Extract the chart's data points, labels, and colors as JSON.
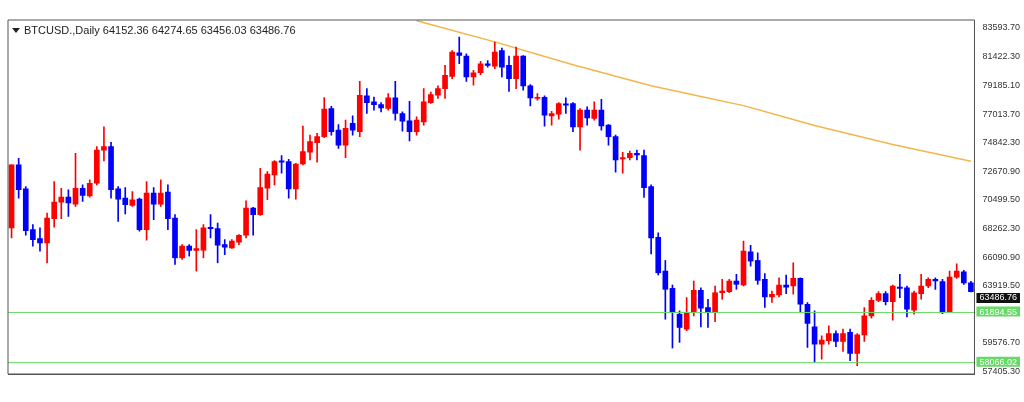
{
  "chart_data": {
    "type": "candlestick",
    "title": "BTCUSD.,Daily 64152.36 64274.65 63456.03 63486.76",
    "categories": [
      null,
      null,
      null,
      null,
      null,
      null,
      null,
      null,
      null,
      null,
      null,
      null,
      null,
      null,
      null,
      null,
      null,
      null,
      null,
      null,
      null,
      null,
      null,
      null,
      null,
      null,
      null,
      null,
      null,
      null,
      null,
      null,
      null,
      null,
      null,
      null,
      null,
      null,
      null,
      null,
      null,
      null,
      null,
      null,
      null,
      null,
      null,
      null,
      null,
      null,
      null,
      null,
      null,
      null,
      null,
      null,
      null,
      null,
      null,
      null,
      null,
      null,
      null,
      null,
      null,
      null,
      null,
      null,
      null,
      null,
      null,
      null,
      null,
      null,
      null,
      null,
      null,
      null,
      null,
      null,
      null,
      null,
      null,
      null,
      null,
      null,
      null,
      null,
      null,
      null,
      null,
      null,
      null,
      null,
      null,
      null,
      null,
      null,
      null,
      null,
      null,
      null,
      null,
      null,
      null,
      null,
      null,
      null,
      null,
      null,
      null,
      null,
      null,
      null,
      null,
      null,
      null,
      null,
      null,
      null,
      null,
      null,
      null,
      null,
      null,
      null,
      null,
      null,
      null,
      null,
      null,
      null,
      null,
      null,
      null,
      null
    ],
    "ohlc": [
      [
        68340,
        73150,
        67580,
        73150
      ],
      [
        73150,
        73650,
        70620,
        71250
      ],
      [
        71320,
        71500,
        67780,
        68140
      ],
      [
        68210,
        68590,
        66950,
        67450
      ],
      [
        67530,
        68340,
        66570,
        67200
      ],
      [
        67200,
        69480,
        65680,
        69100
      ],
      [
        69050,
        71880,
        68390,
        70310
      ],
      [
        70310,
        71370,
        69050,
        70690
      ],
      [
        70690,
        71250,
        69220,
        70240
      ],
      [
        70160,
        74030,
        69980,
        71370
      ],
      [
        71370,
        71630,
        70360,
        70820
      ],
      [
        70790,
        72010,
        70690,
        71750
      ],
      [
        71750,
        74540,
        71630,
        74280
      ],
      [
        74280,
        76050,
        73450,
        74540
      ],
      [
        74540,
        74870,
        70620,
        71250
      ],
      [
        71320,
        71500,
        68840,
        70540
      ],
      [
        70620,
        71420,
        69400,
        70110
      ],
      [
        70060,
        71120,
        69980,
        70490
      ],
      [
        70540,
        70620,
        68090,
        68210
      ],
      [
        68210,
        71880,
        67400,
        70990
      ],
      [
        70990,
        71420,
        68970,
        70160
      ],
      [
        70160,
        72010,
        69980,
        70990
      ],
      [
        71070,
        71630,
        68210,
        69050
      ],
      [
        69100,
        69350,
        65560,
        66060
      ],
      [
        66060,
        67070,
        65930,
        66950
      ],
      [
        66950,
        67070,
        66190,
        66620
      ],
      [
        66620,
        68210,
        65050,
        66770
      ],
      [
        66640,
        68590,
        66060,
        68340
      ],
      [
        68390,
        69350,
        67580,
        68290
      ],
      [
        68290,
        68720,
        65680,
        67020
      ],
      [
        67070,
        67450,
        66310,
        66870
      ],
      [
        66820,
        67450,
        66770,
        67330
      ],
      [
        67250,
        67830,
        67070,
        67780
      ],
      [
        67780,
        70410,
        67580,
        69860
      ],
      [
        69860,
        69910,
        67780,
        69350
      ],
      [
        69350,
        72890,
        69300,
        71420
      ],
      [
        71370,
        72640,
        70490,
        72440
      ],
      [
        72390,
        73470,
        71630,
        73400
      ],
      [
        73450,
        73850,
        72510,
        73350
      ],
      [
        73400,
        73580,
        70620,
        71320
      ],
      [
        71320,
        73270,
        70540,
        73220
      ],
      [
        73220,
        76110,
        73150,
        74160
      ],
      [
        74110,
        75420,
        73520,
        74920
      ],
      [
        74840,
        75550,
        73350,
        75300
      ],
      [
        75300,
        78280,
        75220,
        77400
      ],
      [
        77450,
        77620,
        75420,
        75680
      ],
      [
        75800,
        76230,
        74410,
        74660
      ],
      [
        74660,
        76560,
        73700,
        75930
      ],
      [
        76310,
        76890,
        75420,
        75800
      ],
      [
        75680,
        79520,
        75300,
        78460
      ],
      [
        78410,
        78960,
        77070,
        77900
      ],
      [
        77950,
        78330,
        77320,
        77750
      ],
      [
        77750,
        77900,
        77190,
        77500
      ],
      [
        77450,
        78580,
        77320,
        78260
      ],
      [
        78260,
        79520,
        76560,
        77070
      ],
      [
        77070,
        77190,
        75730,
        76480
      ],
      [
        76510,
        78000,
        74970,
        75680
      ],
      [
        75680,
        76810,
        75420,
        76560
      ],
      [
        76430,
        78960,
        76180,
        77950
      ],
      [
        77900,
        78710,
        77830,
        78510
      ],
      [
        78460,
        79170,
        78210,
        78960
      ],
      [
        78960,
        80740,
        78210,
        79980
      ],
      [
        79900,
        81870,
        79720,
        81750
      ],
      [
        81700,
        82890,
        80860,
        81490
      ],
      [
        81440,
        81620,
        79520,
        79850
      ],
      [
        79850,
        80360,
        79220,
        80180
      ],
      [
        80180,
        81040,
        80030,
        80860
      ],
      [
        80860,
        81110,
        80610,
        80740
      ],
      [
        80680,
        82510,
        80480,
        81750
      ],
      [
        81870,
        82050,
        79850,
        80610
      ],
      [
        80740,
        81440,
        78760,
        79720
      ],
      [
        79720,
        82130,
        78960,
        81440
      ],
      [
        81440,
        81490,
        78840,
        79170
      ],
      [
        79170,
        79270,
        77650,
        78260
      ],
      [
        78210,
        78580,
        78080,
        78310
      ],
      [
        78310,
        78410,
        76110,
        76940
      ],
      [
        76890,
        77240,
        76180,
        77070
      ],
      [
        77020,
        77900,
        76640,
        77830
      ],
      [
        77800,
        78260,
        77070,
        77700
      ],
      [
        77830,
        77900,
        75680,
        76050
      ],
      [
        76050,
        77450,
        74280,
        77320
      ],
      [
        77320,
        77570,
        76180,
        76740
      ],
      [
        76690,
        77950,
        76560,
        77320
      ],
      [
        77320,
        78150,
        75800,
        76130
      ],
      [
        76180,
        76230,
        74660,
        75300
      ],
      [
        75300,
        75420,
        72590,
        73520
      ],
      [
        73600,
        74110,
        72510,
        73700
      ],
      [
        73700,
        74210,
        73520,
        74030
      ],
      [
        74030,
        74280,
        73520,
        73900
      ],
      [
        73850,
        74280,
        70670,
        71420
      ],
      [
        71500,
        71630,
        66360,
        67580
      ],
      [
        67630,
        67960,
        64750,
        64920
      ],
      [
        65050,
        65860,
        61380,
        63660
      ],
      [
        63730,
        63990,
        59180,
        61890
      ],
      [
        61760,
        62010,
        59610,
        60750
      ],
      [
        60620,
        63030,
        60500,
        61890
      ],
      [
        61890,
        64290,
        61630,
        63580
      ],
      [
        63580,
        63780,
        60800,
        62220
      ],
      [
        62270,
        62900,
        60750,
        61890
      ],
      [
        61890,
        63910,
        61200,
        63400
      ],
      [
        63400,
        64420,
        62900,
        63530
      ],
      [
        63480,
        64420,
        63400,
        64290
      ],
      [
        64290,
        64800,
        63660,
        64040
      ],
      [
        63990,
        67330,
        63910,
        66570
      ],
      [
        66520,
        67020,
        65430,
        65810
      ],
      [
        65860,
        66440,
        64040,
        64340
      ],
      [
        64420,
        64850,
        62270,
        63080
      ],
      [
        63080,
        63530,
        62650,
        63280
      ],
      [
        63230,
        64540,
        63080,
        63990
      ],
      [
        63990,
        64750,
        63330,
        63830
      ],
      [
        63910,
        65680,
        63280,
        64490
      ],
      [
        64490,
        64540,
        61960,
        62520
      ],
      [
        62520,
        62650,
        59230,
        61050
      ],
      [
        60800,
        62010,
        58090,
        59480
      ],
      [
        59480,
        60120,
        58340,
        59790
      ],
      [
        59740,
        60870,
        59480,
        60290
      ],
      [
        60290,
        60500,
        59280,
        59690
      ],
      [
        59690,
        60620,
        58930,
        60290
      ],
      [
        60370,
        60620,
        58220,
        58770
      ],
      [
        58770,
        60290,
        57840,
        60190
      ],
      [
        60190,
        62270,
        59690,
        61630
      ],
      [
        61630,
        63030,
        61460,
        62820
      ],
      [
        62820,
        63480,
        62720,
        63330
      ],
      [
        63330,
        63480,
        62470,
        62720
      ],
      [
        62720,
        63990,
        61300,
        63910
      ],
      [
        63830,
        64800,
        63030,
        63730
      ],
      [
        63780,
        63910,
        61560,
        62140
      ],
      [
        62060,
        63530,
        61760,
        63400
      ],
      [
        63330,
        64800,
        62900,
        63910
      ],
      [
        63910,
        64540,
        63780,
        64420
      ],
      [
        64420,
        64540,
        63660,
        64290
      ],
      [
        64240,
        64420,
        61810,
        61890
      ],
      [
        61960,
        65050,
        61890,
        64590
      ],
      [
        64590,
        65610,
        64490,
        65050
      ],
      [
        65000,
        65100,
        64040,
        64150
      ],
      [
        64152.36,
        64274.65,
        63456.03,
        63486.76
      ]
    ],
    "colors": [
      "#ff0000",
      "#0000ff",
      "#0000ff",
      "#0000ff",
      "#0000ff",
      "#ff0000",
      "#ff0000",
      "#ff0000",
      "#0000ff",
      "#ff0000",
      "#0000ff",
      "#ff0000",
      "#ff0000",
      "#ff0000",
      "#0000ff",
      "#0000ff",
      "#0000ff",
      "#ff0000",
      "#0000ff",
      "#ff0000",
      "#0000ff",
      "#ff0000",
      "#0000ff",
      "#0000ff",
      "#ff0000",
      "#0000ff",
      "#ff0000",
      "#ff0000",
      "#0000ff",
      "#0000ff",
      "#0000ff",
      "#ff0000",
      "#ff0000",
      "#ff0000",
      "#0000ff",
      "#ff0000",
      "#ff0000",
      "#ff0000",
      "#0000ff",
      "#0000ff",
      "#ff0000",
      "#ff0000",
      "#ff0000",
      "#ff0000",
      "#ff0000",
      "#0000ff",
      "#0000ff",
      "#ff0000",
      "#0000ff",
      "#ff0000",
      "#0000ff",
      "#0000ff",
      "#0000ff",
      "#ff0000",
      "#0000ff",
      "#0000ff",
      "#0000ff",
      "#ff0000",
      "#ff0000",
      "#ff0000",
      "#ff0000",
      "#ff0000",
      "#ff0000",
      "#0000ff",
      "#0000ff",
      "#ff0000",
      "#ff0000",
      "#0000ff",
      "#ff0000",
      "#0000ff",
      "#0000ff",
      "#ff0000",
      "#0000ff",
      "#0000ff",
      "#ff0000",
      "#0000ff",
      "#ff0000",
      "#ff0000",
      "#0000ff",
      "#0000ff",
      "#ff0000",
      "#0000ff",
      "#ff0000",
      "#0000ff",
      "#0000ff",
      "#0000ff",
      "#ff0000",
      "#ff0000",
      "#0000ff",
      "#0000ff",
      "#0000ff",
      "#0000ff",
      "#0000ff",
      "#0000ff",
      "#0000ff",
      "#ff0000",
      "#ff0000",
      "#0000ff",
      "#0000ff",
      "#ff0000",
      "#ff0000",
      "#ff0000",
      "#0000ff",
      "#ff0000",
      "#0000ff",
      "#0000ff",
      "#0000ff",
      "#ff0000",
      "#ff0000",
      "#0000ff",
      "#ff0000",
      "#0000ff",
      "#0000ff",
      "#0000ff",
      "#ff0000",
      "#ff0000",
      "#0000ff",
      "#ff0000",
      "#0000ff",
      "#ff0000",
      "#ff0000",
      "#ff0000",
      "#ff0000",
      "#0000ff",
      "#ff0000",
      "#0000ff",
      "#0000ff",
      "#ff0000",
      "#ff0000",
      "#ff0000",
      "#0000ff",
      "#0000ff",
      "#ff0000",
      "#ff0000",
      "#0000ff",
      "#0000ff"
    ],
    "series": [
      {
        "type": "line",
        "color": "#f2b64c",
        "values": [
          null,
          null,
          null,
          null,
          null,
          null,
          null,
          null,
          null,
          null,
          null,
          null,
          null,
          null,
          null,
          null,
          null,
          null,
          null,
          null,
          null,
          null,
          null,
          null,
          null,
          null,
          null,
          null,
          null,
          null,
          null,
          null,
          null,
          null,
          null,
          null,
          null,
          null,
          null,
          null,
          null,
          null,
          null,
          null,
          null,
          null,
          null,
          null,
          null,
          null,
          null,
          null,
          null,
          null,
          null,
          null,
          null,
          84150,
          null,
          null,
          null,
          null,
          null,
          null,
          null,
          null,
          null,
          null,
          82530,
          null,
          null,
          null,
          null,
          null,
          null,
          null,
          null,
          null,
          null,
          80790,
          null,
          null,
          null,
          null,
          null,
          null,
          null,
          null,
          null,
          null,
          79190,
          null,
          null,
          null,
          null,
          null,
          null,
          78360,
          null,
          null,
          null,
          null,
          null,
          77670,
          null,
          null,
          null,
          null,
          null,
          null,
          null,
          null,
          null,
          76160,
          null,
          null,
          null,
          null,
          null,
          null,
          null,
          null,
          null,
          null,
          74710,
          null,
          null,
          null,
          null,
          null,
          null,
          null,
          null,
          null,
          null,
          73420
        ]
      }
    ],
    "ylim": [
      57200,
      84200
    ],
    "yticks": [
      {
        "value": 83593.7,
        "label": "83593.70"
      },
      {
        "value": 81422.3,
        "label": "81422.30"
      },
      {
        "value": 79185.1,
        "label": "79185.10"
      },
      {
        "value": 77013.7,
        "label": "77013.70"
      },
      {
        "value": 74842.3,
        "label": "74842.30"
      },
      {
        "value": 72670.9,
        "label": "72670.90"
      },
      {
        "value": 70499.5,
        "label": "70499.50"
      },
      {
        "value": 68262.3,
        "label": "68262.30"
      },
      {
        "value": 66090.9,
        "label": "66090.90"
      },
      {
        "value": 63919.5,
        "label": "63919.50"
      },
      {
        "value": 59576.7,
        "label": "59576.70"
      },
      {
        "value": 57405.3,
        "label": "57405.30"
      }
    ],
    "ref_lines": [
      {
        "axis": "y",
        "value": 61894.55,
        "label": "61894.55",
        "color": "#66d966"
      },
      {
        "axis": "y",
        "value": 58066.02,
        "label": "58066.02",
        "color": "#66d966"
      }
    ],
    "annotations": [
      "63486.76"
    ],
    "tick_labels": "y"
  }
}
